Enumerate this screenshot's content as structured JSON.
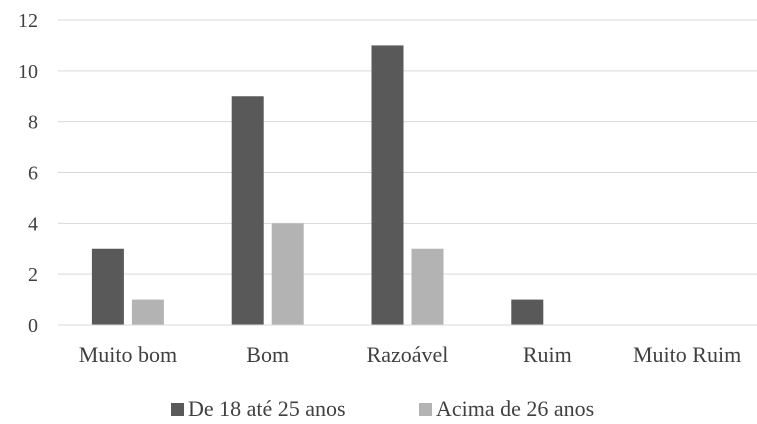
{
  "chart_data": {
    "type": "bar",
    "categories": [
      "Muito bom",
      "Bom",
      "Razoável",
      "Ruim",
      "Muito Ruim"
    ],
    "series": [
      {
        "name": "De 18 até 25 anos",
        "values": [
          3,
          9,
          11,
          1,
          0
        ],
        "color": "#595959"
      },
      {
        "name": "Acima de 26 anos",
        "values": [
          1,
          4,
          3,
          0,
          0
        ],
        "color": "#b3b3b3"
      }
    ],
    "ylim": [
      0,
      12
    ],
    "yticks": [
      0,
      2,
      4,
      6,
      8,
      10,
      12
    ],
    "grid": true,
    "legend": "bottom"
  }
}
